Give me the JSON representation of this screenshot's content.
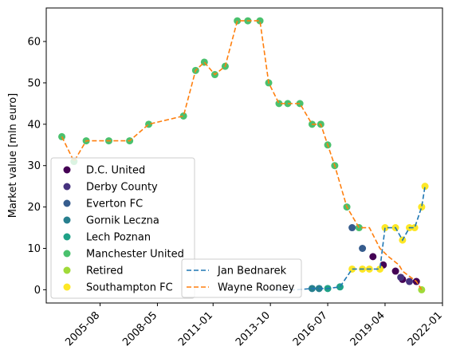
{
  "chart_data": {
    "type": "scatter",
    "title": "",
    "xlabel": "",
    "ylabel": "Market value [mln euro]",
    "x_type": "date",
    "xlim": [
      "2003-01-01",
      "2022-01-01"
    ],
    "ylim": [
      -3.2,
      68.1
    ],
    "x_ticks": [
      "2005-08",
      "2008-05",
      "2011-01",
      "2013-10",
      "2016-07",
      "2019-04",
      "2022-01"
    ],
    "y_ticks": [
      0,
      10,
      20,
      30,
      40,
      50,
      60
    ],
    "grid": false,
    "line_series": [
      {
        "name": "Jan Bednarek",
        "color": "#1f77b4",
        "x": [
          "2014-01-01",
          "2015-01-01",
          "2015-10-01",
          "2016-02-01",
          "2016-07-01",
          "2017-02-01",
          "2017-09-01",
          "2018-03-01",
          "2018-07-01",
          "2019-01-01",
          "2019-04-01",
          "2019-10-01",
          "2020-02-01",
          "2020-06-01",
          "2020-09-01",
          "2021-01-01",
          "2021-03-01"
        ],
        "y": [
          0,
          0,
          0.3,
          0.3,
          0.3,
          0.7,
          5,
          5,
          5,
          5,
          15,
          15,
          12,
          15,
          15,
          20,
          25
        ]
      },
      {
        "name": "Wayne Rooney",
        "color": "#ff7f0e",
        "x": [
          "2003-10-01",
          "2004-05-01",
          "2004-12-01",
          "2006-01-01",
          "2007-01-01",
          "2007-12-01",
          "2009-08-01",
          "2010-03-01",
          "2010-08-01",
          "2011-02-01",
          "2011-08-01",
          "2012-03-01",
          "2012-09-01",
          "2013-04-01",
          "2013-09-01",
          "2014-03-01",
          "2014-08-01",
          "2015-03-01",
          "2015-10-01",
          "2016-03-01",
          "2016-07-01",
          "2016-11-01",
          "2017-06-01",
          "2018-01-01",
          "2018-07-01",
          "2019-01-01",
          "2019-06-01",
          "2019-12-01",
          "2020-02-01",
          "2020-10-01",
          "2021-01-01"
        ],
        "y": [
          37,
          31,
          36,
          36,
          36,
          40,
          42,
          53,
          55,
          52,
          54,
          65,
          65,
          65,
          50,
          45,
          45,
          45,
          40,
          40,
          35,
          30,
          20,
          15,
          15,
          10,
          8,
          6,
          4.5,
          2,
          0
        ]
      }
    ],
    "scatter_series": [
      {
        "name": "D.C. United",
        "color": "#440154",
        "x": [
          "2018-09-01",
          "2019-03-01",
          "2019-10-01",
          "2020-02-01",
          "2020-10-01"
        ],
        "y": [
          8,
          6,
          4.5,
          2.5,
          2
        ]
      },
      {
        "name": "Derby County",
        "color": "#46327e",
        "x": [
          "2020-01-01",
          "2020-06-01"
        ],
        "y": [
          3,
          2
        ]
      },
      {
        "name": "Everton FC",
        "color": "#365c8d",
        "x": [
          "2017-09-01",
          "2018-03-01"
        ],
        "y": [
          15,
          10
        ]
      },
      {
        "name": "Gornik Leczna",
        "color": "#277f8e",
        "x": [
          "2015-10-01",
          "2016-02-01"
        ],
        "y": [
          0.3,
          0.3
        ]
      },
      {
        "name": "Lech Poznan",
        "color": "#1fa187",
        "x": [
          "2016-07-01",
          "2017-02-01"
        ],
        "y": [
          0.3,
          0.7
        ]
      },
      {
        "name": "Manchester United",
        "color": "#4ac16d",
        "x": [
          "2003-10-01",
          "2004-05-01",
          "2004-12-01",
          "2006-01-01",
          "2007-01-01",
          "2007-12-01",
          "2009-08-01",
          "2010-03-01",
          "2010-08-01",
          "2011-02-01",
          "2011-08-01",
          "2012-03-01",
          "2012-09-01",
          "2013-04-01",
          "2013-09-01",
          "2014-03-01",
          "2014-08-01",
          "2015-03-01",
          "2015-10-01",
          "2016-03-01",
          "2016-07-01",
          "2016-11-01",
          "2017-06-01",
          "2018-01-01"
        ],
        "y": [
          37,
          31,
          36,
          36,
          36,
          40,
          42,
          53,
          55,
          52,
          54,
          65,
          65,
          65,
          50,
          45,
          45,
          45,
          40,
          40,
          35,
          30,
          20,
          15
        ]
      },
      {
        "name": "Retired",
        "color": "#a0da39",
        "x": [
          "2021-01-01"
        ],
        "y": [
          0
        ]
      },
      {
        "name": "Southampton FC",
        "color": "#fde725",
        "x": [
          "2017-09-01",
          "2018-03-01",
          "2018-07-01",
          "2019-01-01",
          "2019-04-01",
          "2019-10-01",
          "2020-02-01",
          "2020-06-01",
          "2020-09-01",
          "2021-01-01",
          "2021-03-01"
        ],
        "y": [
          5,
          5,
          5,
          5,
          15,
          15,
          12,
          15,
          15,
          20,
          25
        ]
      }
    ],
    "scatter_legend_location": "lower left",
    "line_legend_location": "lower center"
  }
}
